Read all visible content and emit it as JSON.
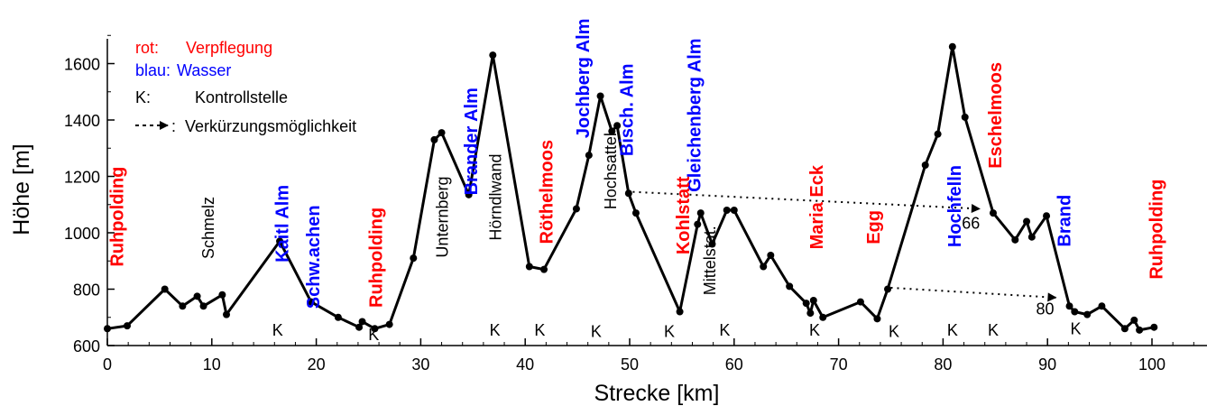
{
  "chart_data": {
    "type": "line",
    "xlabel": "Strecke [km]",
    "ylabel": "Höhe [m]",
    "xlim": [
      0,
      105
    ],
    "ylim": [
      600,
      1700
    ],
    "xticks": [
      "0",
      "10",
      "20",
      "30",
      "40",
      "50",
      "60",
      "70",
      "80",
      "90",
      "100"
    ],
    "yticks": [
      "600",
      "800",
      "1000",
      "1200",
      "1400",
      "1600"
    ],
    "grid": false,
    "colors": {
      "verpflegung": "#ff0000",
      "wasser": "#0000ff",
      "line": "#000000"
    },
    "legend": {
      "rot_key": "rot:",
      "rot_val": "Verpflegung",
      "blau_key": "blau:",
      "blau_val": "Wasser",
      "k_key": "K:",
      "k_val": "Kontrollstelle",
      "arrow_key": ":",
      "arrow_val": "Verkürzungsmöglichkeit"
    },
    "x": [
      0,
      1.9,
      5.5,
      7.2,
      8.6,
      9.2,
      11,
      11.4,
      16.5,
      19.5,
      22.1,
      24.1,
      24.4,
      25.6,
      27,
      29.3,
      31.3,
      32,
      34.6,
      36.9,
      40.4,
      41.8,
      44.9,
      46.1,
      47.2,
      48.3,
      48.8,
      49.9,
      50.6,
      54.8,
      56.5,
      56.8,
      57.9,
      59.3,
      60,
      62.8,
      63.5,
      65.3,
      66.9,
      67.3,
      67.6,
      68.5,
      72.1,
      73.7,
      74.7,
      78.3,
      79.5,
      80.9,
      82.1,
      84.8,
      86.9,
      88,
      88.5,
      89.9,
      92.1,
      92.6,
      93.8,
      95.2,
      97.4,
      98.3,
      98.8,
      100.2
    ],
    "y": [
      660,
      670,
      800,
      740,
      775,
      740,
      780,
      710,
      970,
      755,
      700,
      665,
      685,
      660,
      675,
      910,
      1330,
      1355,
      1135,
      1630,
      880,
      870,
      1085,
      1275,
      1485,
      1360,
      1380,
      1140,
      1070,
      720,
      1030,
      1070,
      960,
      1080,
      1080,
      880,
      920,
      810,
      750,
      715,
      760,
      700,
      755,
      695,
      800,
      1240,
      1350,
      1660,
      1410,
      1070,
      975,
      1040,
      985,
      1060,
      740,
      720,
      710,
      740,
      660,
      690,
      655,
      665
    ],
    "annotations": [
      {
        "text": "Ruhpolding",
        "x": 1.5,
        "y": 1235,
        "color": "red"
      },
      {
        "text": "Schmelz",
        "x": 10.2,
        "y": 1128,
        "color": "black"
      },
      {
        "text": "Kaitl Alm",
        "x": 17.3,
        "y": 1170,
        "color": "blue"
      },
      {
        "text": "Schw.achen",
        "x": 20.3,
        "y": 1098,
        "color": "blue"
      },
      {
        "text": "Ruhpolding",
        "x": 26.3,
        "y": 1090,
        "color": "red"
      },
      {
        "text": "Unternberg",
        "x": 32.6,
        "y": 1200,
        "color": "black"
      },
      {
        "text": "Brander Alm",
        "x": 35.4,
        "y": 1515,
        "color": "blue"
      },
      {
        "text": "Hörndlwand",
        "x": 37.7,
        "y": 1280,
        "color": "black"
      },
      {
        "text": "Röthelmoos",
        "x": 42.6,
        "y": 1330,
        "color": "red"
      },
      {
        "text": "Jochberg Alm",
        "x": 46.1,
        "y": 1760,
        "color": "blue"
      },
      {
        "text": "Bisch. Alm",
        "x": 50.3,
        "y": 1600,
        "color": "blue"
      },
      {
        "text": "Hochsattel",
        "x": 48.7,
        "y": 1355,
        "color": "black"
      },
      {
        "text": "Gleichenberg Alm",
        "x": 56.8,
        "y": 1690,
        "color": "blue"
      },
      {
        "text": "Kohlstatt",
        "x": 55.7,
        "y": 1200,
        "color": "red"
      },
      {
        "text": "Mittelstat.",
        "x": 58.2,
        "y": 1025,
        "color": "black"
      },
      {
        "text": "Maria Eck",
        "x": 68.5,
        "y": 1240,
        "color": "red"
      },
      {
        "text": "Egg",
        "x": 73.9,
        "y": 1080,
        "color": "red"
      },
      {
        "text": "Hochfelln",
        "x": 81.7,
        "y": 1240,
        "color": "blue"
      },
      {
        "text": "Eschelmoos",
        "x": 85.6,
        "y": 1605,
        "color": "red"
      },
      {
        "text": "Brand",
        "x": 92.2,
        "y": 1135,
        "color": "blue"
      },
      {
        "text": "Ruhpolding",
        "x": 101,
        "y": 1190,
        "color": "red"
      }
    ],
    "checkpoints": [
      {
        "text": "K",
        "x": 16.3,
        "y": 635
      },
      {
        "text": "K",
        "x": 25.5,
        "y": 620
      },
      {
        "text": "K",
        "x": 37.1,
        "y": 635
      },
      {
        "text": "K",
        "x": 41.4,
        "y": 635
      },
      {
        "text": "K",
        "x": 46.8,
        "y": 630
      },
      {
        "text": "K",
        "x": 53.8,
        "y": 630
      },
      {
        "text": "K",
        "x": 59.1,
        "y": 635
      },
      {
        "text": "K",
        "x": 67.7,
        "y": 635
      },
      {
        "text": "K",
        "x": 75.3,
        "y": 630
      },
      {
        "text": "K",
        "x": 80.9,
        "y": 635
      },
      {
        "text": "K",
        "x": 84.8,
        "y": 635
      },
      {
        "text": "K",
        "x": 92.7,
        "y": 640
      }
    ],
    "shortcuts": [
      {
        "from": [
          50.3,
          1145
        ],
        "to": [
          83.5,
          1085
        ],
        "label": "66",
        "label_at": [
          81.8,
          1015
        ]
      },
      {
        "from": [
          75,
          805
        ],
        "to": [
          90.8,
          770
        ],
        "label": "80",
        "label_at": [
          88.9,
          710
        ]
      }
    ]
  }
}
